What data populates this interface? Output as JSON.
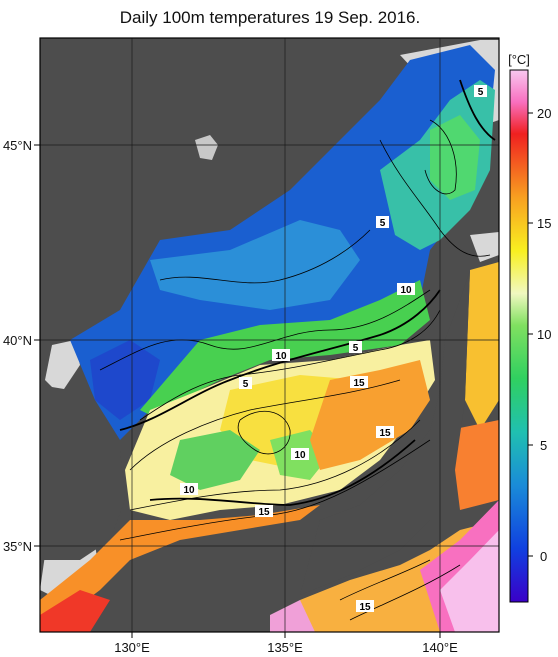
{
  "title": "Daily 100m temperatures 19 Sep. 2016.",
  "axes": {
    "lat_labels": [
      "45°N",
      "40°N",
      "35°N"
    ],
    "lon_labels": [
      "130°E",
      "135°E",
      "140°E"
    ]
  },
  "colorbar": {
    "unit": "[°C]",
    "ticks": [
      "20",
      "15",
      "10",
      "5",
      "0"
    ],
    "range": [
      -2,
      22
    ]
  },
  "contour_labels": [
    "5",
    "5",
    "10",
    "5",
    "10",
    "15",
    "5",
    "15",
    "10",
    "10",
    "15",
    "15"
  ],
  "colors": {
    "land": "#4d4d4d",
    "no_data": "#d8d8d8",
    "grid": "#1a1a1a"
  }
}
